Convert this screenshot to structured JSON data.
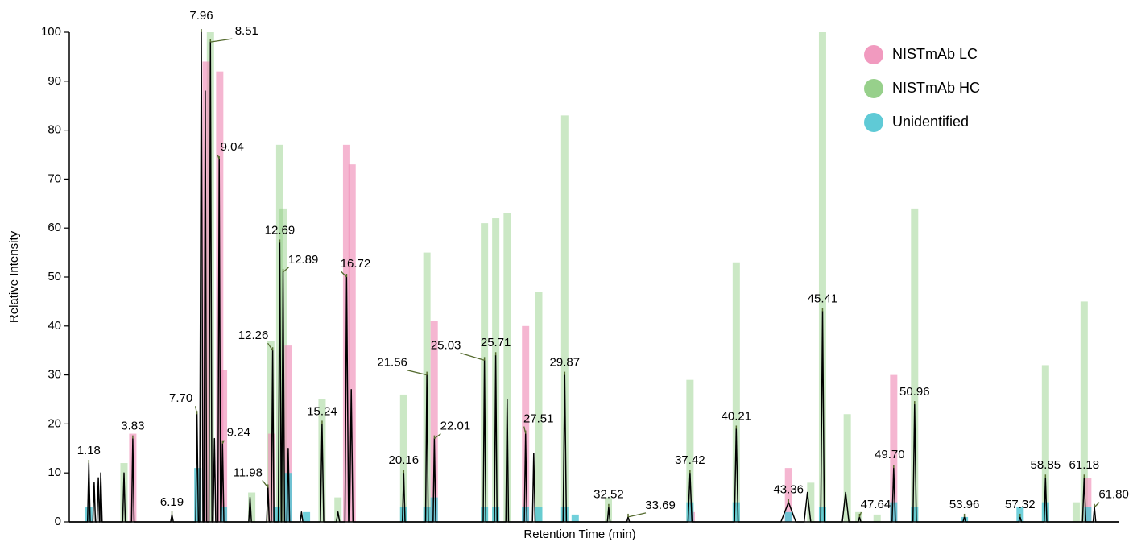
{
  "chart_data": {
    "type": "chromatogram",
    "ylabel": "Relative Intensity",
    "xlabel": "Retention Time (min)",
    "xlim": [
      0,
      63.3
    ],
    "ylim": [
      0,
      100
    ],
    "yticks": [
      0,
      10,
      20,
      30,
      40,
      50,
      60,
      70,
      80,
      90,
      100
    ],
    "legend": "top-right",
    "series": [
      {
        "name": "NISTmAb HC",
        "color": "#8ccb7e",
        "x": [
          3.3,
          8.51,
          11.0,
          12.15,
          12.69,
          12.89,
          15.24,
          16.2,
          20.16,
          21.56,
          25.03,
          25.71,
          26.4,
          28.3,
          29.87,
          32.5,
          37.42,
          40.21,
          44.7,
          45.41,
          46.9,
          47.6,
          48.7,
          50.96,
          58.85,
          60.7,
          61.18
        ],
        "values": [
          12,
          100,
          6,
          37,
          77,
          64,
          25,
          5,
          26,
          55,
          61,
          62,
          63,
          47,
          83,
          5,
          29,
          53,
          8,
          100,
          22,
          2,
          1.5,
          64,
          32,
          4,
          45
        ]
      },
      {
        "name": "NISTmAb LC",
        "color": "#ef8fb8",
        "x": [
          3.83,
          8.25,
          9.07,
          9.3,
          12.2,
          13.2,
          16.72,
          17.05,
          22.0,
          27.51,
          37.5,
          43.36,
          49.7,
          61.4
        ],
        "values": [
          18,
          94,
          92,
          31,
          18,
          36,
          77,
          73,
          41,
          40,
          2,
          11,
          30,
          9
        ]
      },
      {
        "name": "Unidentified",
        "color": "#4ec4d2",
        "x": [
          1.18,
          7.75,
          9.3,
          12.5,
          13.2,
          14.3,
          20.16,
          21.56,
          22.0,
          25.03,
          25.71,
          27.5,
          28.3,
          29.87,
          30.5,
          37.42,
          40.21,
          43.36,
          45.41,
          49.7,
          50.96,
          53.96,
          57.32,
          58.85,
          61.4
        ],
        "values": [
          3,
          11,
          3,
          3,
          10,
          2,
          3,
          3,
          5,
          3,
          3,
          3,
          3,
          3,
          1.5,
          4,
          4,
          2,
          3,
          4,
          3,
          1,
          3,
          4,
          3
        ]
      }
    ],
    "legend_order": [
      1,
      0,
      2
    ],
    "trace": {
      "color": "#000000",
      "x": [
        0,
        1.1,
        1.18,
        1.26,
        1.42,
        1.5,
        1.58,
        1.67,
        1.75,
        1.82,
        1.84,
        1.9,
        1.98,
        3.22,
        3.3,
        3.38,
        3.75,
        3.83,
        3.91,
        6.11,
        6.19,
        6.27,
        7.62,
        7.7,
        7.78,
        7.86,
        7.96,
        8.06,
        8.12,
        8.2,
        8.28,
        8.42,
        8.51,
        8.6,
        8.67,
        8.75,
        8.83,
        8.96,
        9.04,
        9.12,
        9.16,
        9.24,
        9.32,
        10.82,
        10.9,
        10.98,
        11.9,
        11.98,
        12.06,
        12.18,
        12.26,
        12.34,
        12.6,
        12.69,
        12.78,
        12.8,
        12.89,
        12.98,
        13.12,
        13.2,
        13.28,
        13.92,
        14.0,
        14.08,
        15.14,
        15.24,
        15.34,
        16.1,
        16.2,
        16.3,
        16.62,
        16.72,
        16.84,
        16.9,
        17.0,
        17.1,
        20.08,
        20.16,
        20.24,
        21.48,
        21.56,
        21.64,
        21.93,
        22.01,
        22.09,
        24.95,
        25.03,
        25.11,
        25.63,
        25.71,
        25.79,
        26.32,
        26.4,
        26.48,
        27.43,
        27.51,
        27.59,
        27.92,
        28.0,
        28.08,
        29.77,
        29.87,
        29.97,
        32.44,
        32.52,
        32.6,
        33.61,
        33.69,
        33.77,
        37.3,
        37.42,
        37.54,
        40.1,
        40.21,
        40.32,
        42.9,
        43.36,
        43.8,
        44.3,
        44.5,
        44.7,
        45.3,
        45.41,
        45.52,
        46.6,
        46.8,
        47.0,
        47.56,
        47.64,
        47.72,
        49.6,
        49.7,
        49.8,
        50.86,
        50.96,
        51.06,
        53.88,
        53.96,
        54.04,
        57.24,
        57.32,
        57.4,
        58.77,
        58.85,
        58.93,
        61.08,
        61.18,
        61.28,
        61.72,
        61.8,
        61.88,
        63.3
      ],
      "values": [
        0,
        0,
        12,
        0,
        0,
        8,
        0,
        0,
        9,
        0,
        0,
        10,
        0,
        0,
        10,
        0,
        0,
        17,
        0,
        0,
        1.5,
        0,
        0,
        22,
        0,
        0,
        100,
        0,
        0,
        88,
        0,
        0,
        98,
        0,
        0,
        17,
        0,
        0,
        74,
        0,
        0,
        16,
        0,
        0,
        5,
        0,
        0,
        7,
        0,
        0,
        35,
        0,
        0,
        57,
        0,
        0,
        51,
        0,
        0,
        15,
        0,
        0,
        2,
        0,
        0,
        20,
        0,
        0,
        2,
        0,
        0,
        50,
        0,
        0,
        27,
        0,
        0,
        10,
        0,
        0,
        30,
        0,
        0,
        17,
        0,
        0,
        33,
        0,
        0,
        34,
        0,
        0,
        25,
        0,
        0,
        18,
        0,
        0,
        14,
        0,
        0,
        30,
        0,
        0,
        3,
        0,
        0,
        1,
        0,
        0,
        10,
        0,
        0,
        19,
        0,
        0,
        4,
        0,
        0,
        6,
        0,
        0,
        43,
        0,
        0,
        6,
        0,
        0,
        1,
        0,
        0,
        11,
        0,
        0,
        24,
        0,
        0,
        1,
        0,
        0,
        1,
        0,
        0,
        9,
        0,
        0,
        9,
        0,
        0,
        3,
        0,
        0
      ]
    },
    "peaks": {
      "x": [
        1.18,
        3.83,
        6.19,
        7.7,
        7.96,
        8.51,
        9.04,
        9.24,
        11.98,
        12.26,
        12.69,
        12.89,
        15.24,
        16.72,
        20.16,
        21.56,
        22.01,
        25.03,
        25.71,
        27.51,
        29.87,
        32.52,
        33.69,
        37.42,
        40.21,
        43.36,
        45.41,
        47.64,
        49.7,
        50.96,
        53.96,
        57.32,
        58.85,
        61.18,
        61.8
      ],
      "values": [
        12,
        17,
        1.5,
        22,
        100,
        98,
        74,
        16,
        7,
        35,
        57,
        51,
        20,
        50,
        10,
        30,
        17,
        33,
        34,
        18,
        30,
        3,
        1,
        10,
        19,
        4,
        43,
        1,
        11,
        24,
        1,
        1,
        9,
        9,
        3
      ],
      "value_labels": [
        "1.18",
        "3.83",
        "6.19",
        "7.70",
        "7.96",
        "8.51",
        "9.04",
        "9.24",
        "11.98",
        "12.26",
        "12.69",
        "12.89",
        "15.24",
        "16.72",
        "20.16",
        "21.56",
        "22.01",
        "25.03",
        "25.71",
        "27.51",
        "29.87",
        "32.52",
        "33.69",
        "37.42",
        "40.21",
        "43.36",
        "45.41",
        "47.64",
        "49.70",
        "50.96",
        "53.96",
        "57.32",
        "58.85",
        "61.18",
        "61.80"
      ]
    }
  }
}
